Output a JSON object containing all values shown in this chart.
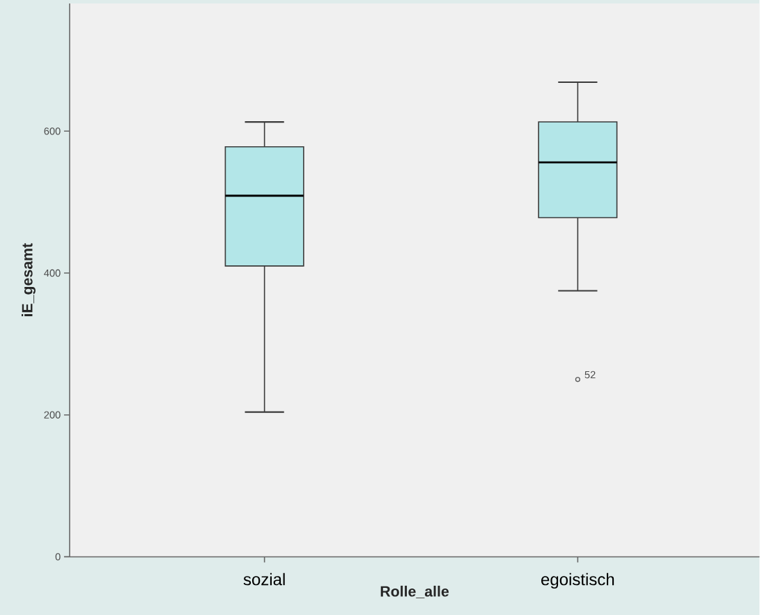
{
  "chart_data": {
    "type": "box",
    "xlabel": "Rolle_alle",
    "ylabel": "iE_gesamt",
    "categories": [
      "sozial",
      "egoistisch"
    ],
    "boxes": [
      {
        "low": 204,
        "q1": 410,
        "median": 509,
        "q3": 578,
        "high": 613
      },
      {
        "low": 375,
        "q1": 478,
        "median": 556,
        "q3": 613,
        "high": 669,
        "outliers": [
          250
        ]
      }
    ],
    "color": "#b3e6e8",
    "marker": "circle",
    "ylim": [
      0,
      780
    ],
    "yticks": [
      0,
      200,
      400,
      600
    ],
    "annotations": [
      "52"
    ]
  }
}
